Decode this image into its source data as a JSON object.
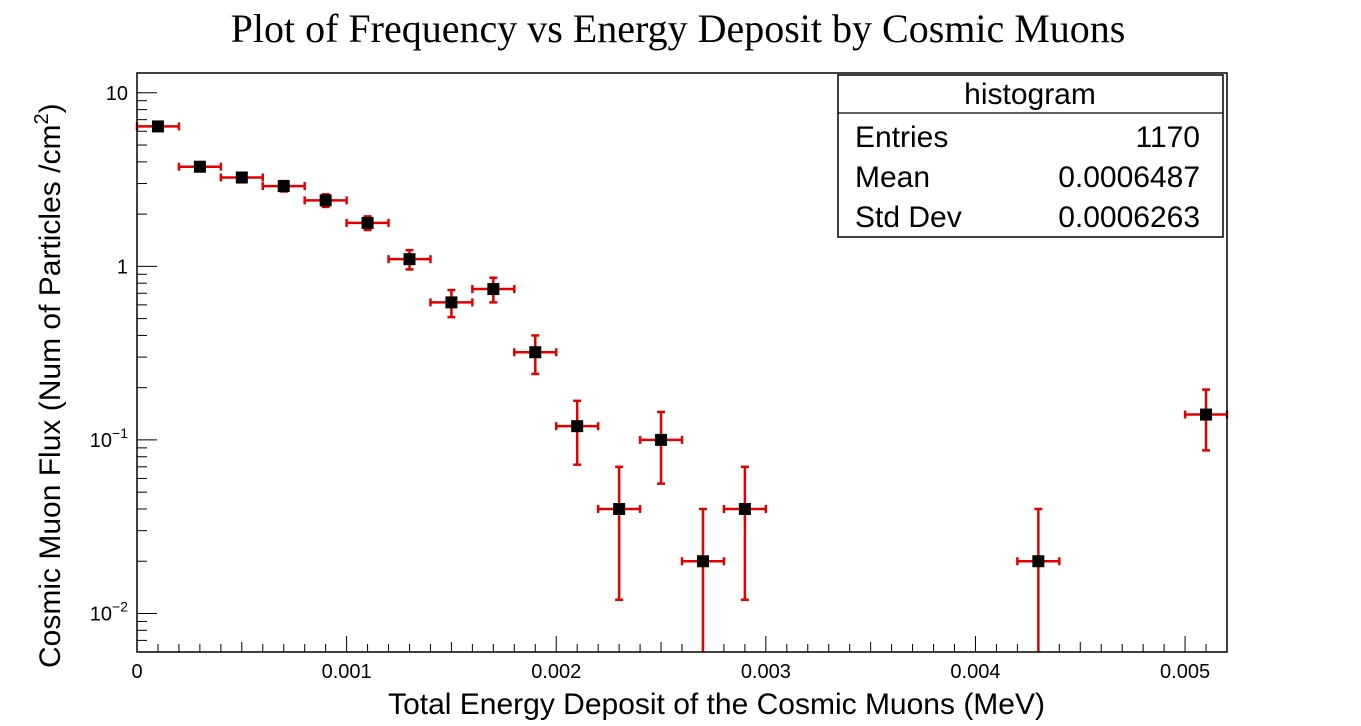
{
  "chart_data": {
    "type": "scatter",
    "title": "Plot of Frequency  vs Energy Deposit by Cosmic Muons",
    "xlabel": "Total Energy Deposit of the Cosmic Muons (MeV)",
    "ylabel": "Cosmic Muon Flux (Num of Particles /cm",
    "ylabel_sup": "2",
    "ylabel_close": ")",
    "yscale": "log",
    "xlim": [
      0,
      0.0052
    ],
    "ylim": [
      0.006,
      13
    ],
    "x_tick_labels": [
      "0",
      "0.001",
      "0.002",
      "0.003",
      "0.004",
      "0.005"
    ],
    "y_tick_labels": [
      {
        "base": "10",
        "exp": "",
        "value": 10
      },
      {
        "base": "1",
        "exp": "",
        "value": 1
      },
      {
        "base": "10",
        "exp": "−1",
        "value": 0.1
      },
      {
        "base": "10",
        "exp": "−2",
        "value": 0.01
      }
    ],
    "bin_width": 0.0002,
    "series": [
      {
        "name": "histogram",
        "marker_color": "#000000",
        "error_color": "#e00000",
        "points": [
          {
            "x": 0.0001,
            "y": 6.4,
            "err_low": 0.3,
            "err_high": 0.3
          },
          {
            "x": 0.0003,
            "y": 3.75,
            "err_low": 0.22,
            "err_high": 0.22
          },
          {
            "x": 0.0005,
            "y": 3.25,
            "err_low": 0.2,
            "err_high": 0.2
          },
          {
            "x": 0.0007,
            "y": 2.9,
            "err_low": 0.2,
            "err_high": 0.2
          },
          {
            "x": 0.0009,
            "y": 2.4,
            "err_low": 0.2,
            "err_high": 0.2
          },
          {
            "x": 0.0011,
            "y": 1.78,
            "err_low": 0.16,
            "err_high": 0.16
          },
          {
            "x": 0.0013,
            "y": 1.1,
            "err_low": 0.14,
            "err_high": 0.14
          },
          {
            "x": 0.0015,
            "y": 0.62,
            "err_low": 0.11,
            "err_high": 0.11
          },
          {
            "x": 0.0017,
            "y": 0.74,
            "err_low": 0.12,
            "err_high": 0.12
          },
          {
            "x": 0.0019,
            "y": 0.32,
            "err_low": 0.08,
            "err_high": 0.08
          },
          {
            "x": 0.0021,
            "y": 0.12,
            "err_low": 0.048,
            "err_high": 0.048
          },
          {
            "x": 0.0023,
            "y": 0.04,
            "err_low": 0.028,
            "err_high": 0.03
          },
          {
            "x": 0.0025,
            "y": 0.1,
            "err_low": 0.044,
            "err_high": 0.045
          },
          {
            "x": 0.0027,
            "y": 0.02,
            "err_low": 0.02,
            "err_high": 0.02
          },
          {
            "x": 0.0029,
            "y": 0.04,
            "err_low": 0.028,
            "err_high": 0.03
          },
          {
            "x": 0.0043,
            "y": 0.02,
            "err_low": 0.02,
            "err_high": 0.02
          },
          {
            "x": 0.0051,
            "y": 0.14,
            "err_low": 0.053,
            "err_high": 0.055
          }
        ]
      }
    ],
    "stats_box": {
      "title": "histogram",
      "rows": [
        {
          "label": "Entries",
          "value": "1170"
        },
        {
          "label": "Mean",
          "value": "0.0006487"
        },
        {
          "label": "Std Dev",
          "value": "0.0006263"
        }
      ]
    }
  }
}
